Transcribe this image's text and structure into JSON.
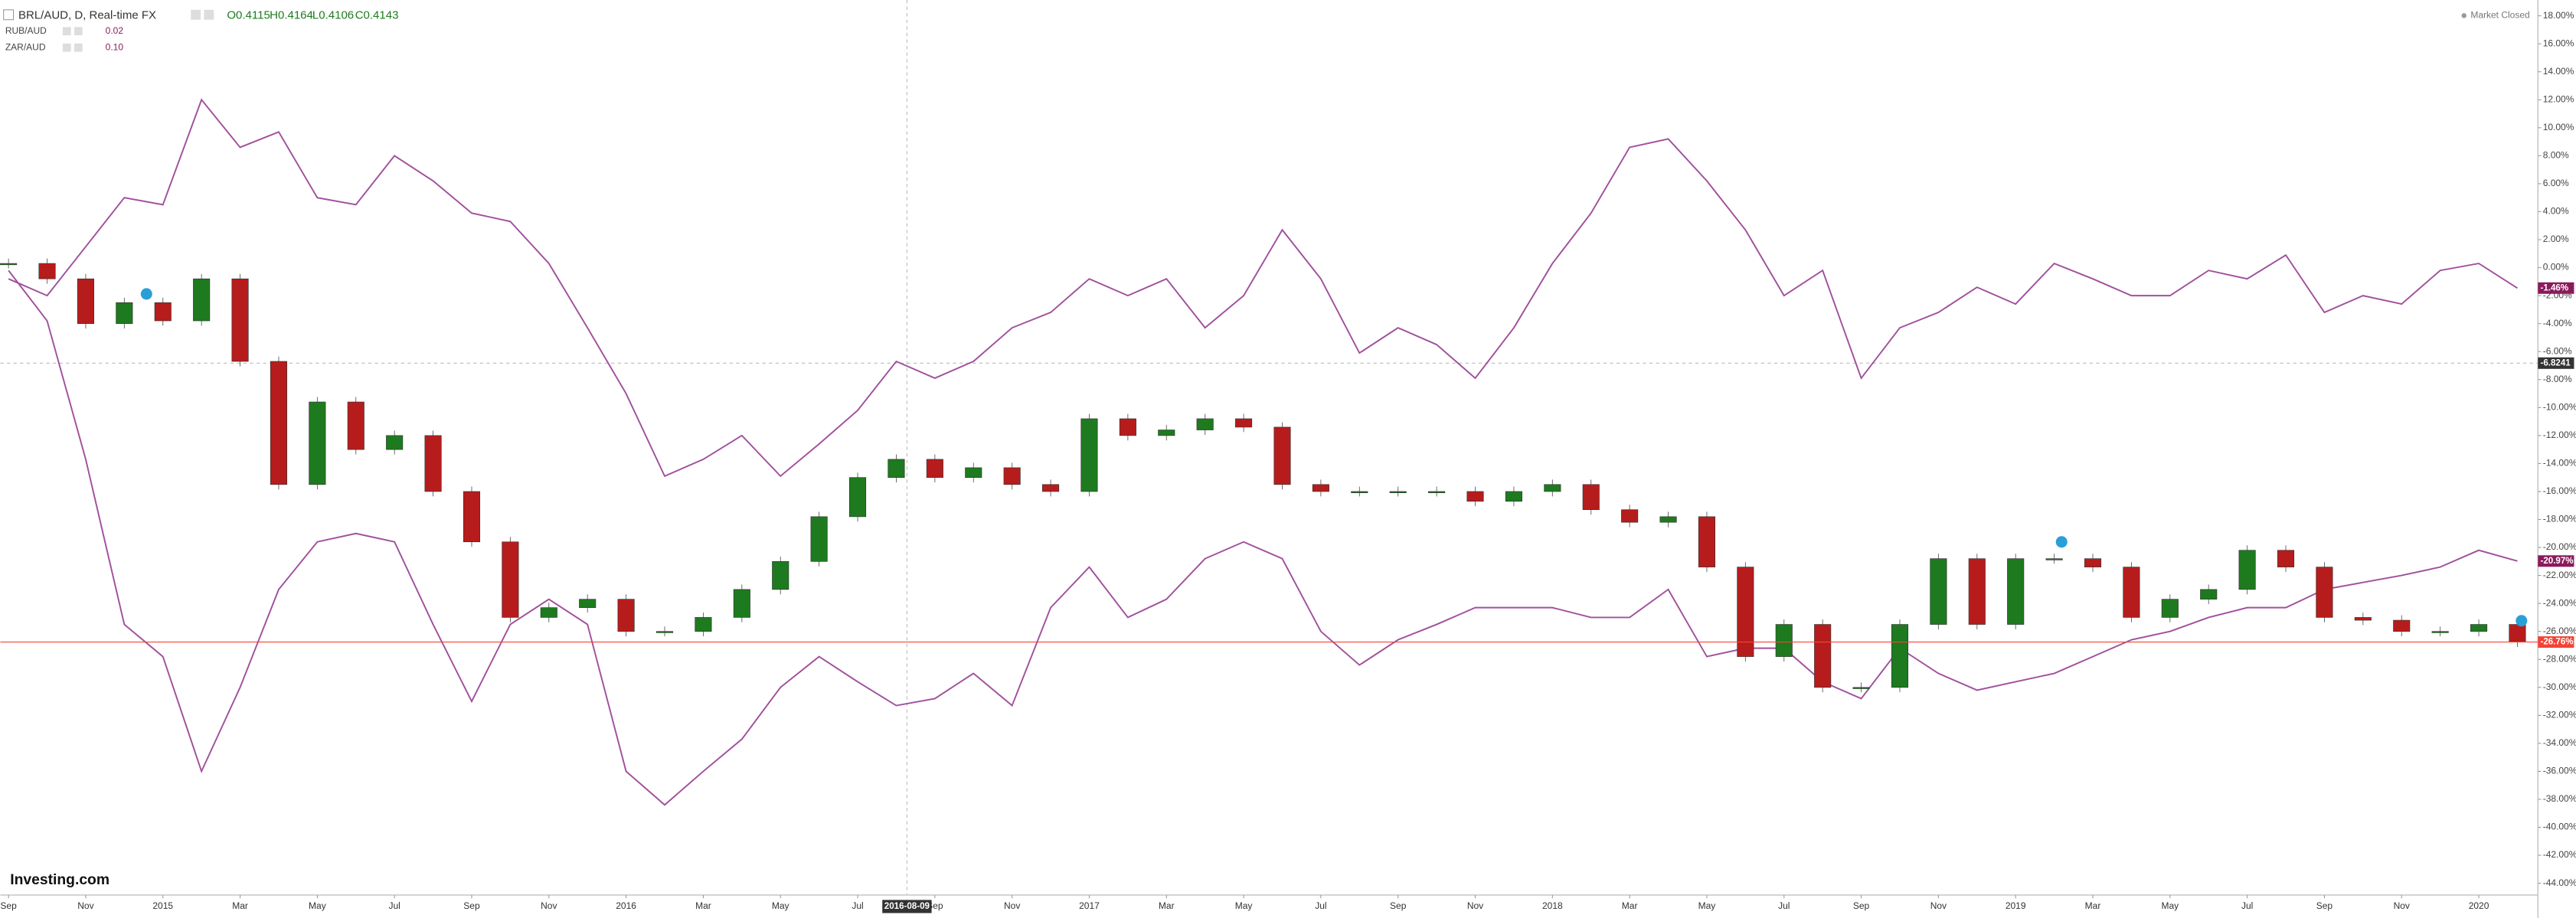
{
  "chart_data": {
    "type": "candlestick",
    "header": {
      "symbol": "BRL/AUD, D, Real-time FX",
      "ohlc": [
        "O0.4115",
        "H0.4164",
        "L0.4106",
        "C0.4143"
      ]
    },
    "status": "Market Closed",
    "brand": "Investing.com",
    "crosshair": {
      "x_label": "2016-08-09",
      "y_label": "-6.8241",
      "y_value": -6.8241
    },
    "categories": [
      "Sep",
      null,
      "Nov",
      null,
      "2015",
      null,
      "Mar",
      null,
      "May",
      null,
      "Jul",
      null,
      "Sep",
      null,
      "Nov",
      null,
      "2016",
      null,
      "Mar",
      null,
      "May",
      null,
      "Jul",
      null,
      "Sep",
      null,
      "Nov",
      null,
      "2017",
      null,
      "Mar",
      null,
      "May",
      null,
      "Jul",
      null,
      "Sep",
      null,
      "Nov",
      null,
      "2018",
      null,
      "Mar",
      null,
      "May",
      null,
      "Jul",
      null,
      "Sep",
      null,
      "Nov",
      null,
      "2019",
      null,
      "Mar",
      null,
      "May",
      null,
      "Jul",
      null,
      "Sep",
      null,
      "Nov",
      null,
      "2020",
      null
    ],
    "series": [
      {
        "name": "BRL/AUD",
        "type": "candlestick",
        "up_color": "#1e7a1e",
        "down_color": "#b71c1c",
        "last_label": "-26.76%",
        "label_color": "#f44336",
        "values": [
          0.3,
          -0.8,
          -4,
          -2.5,
          -3.8,
          -0.8,
          -6.7,
          -15.5,
          -9.6,
          -13,
          -12,
          -16,
          -19.6,
          -25,
          -24.3,
          -23.7,
          -26,
          -26,
          -25,
          -23,
          -21,
          -17.8,
          -15,
          -13.7,
          -15,
          -14.3,
          -15.5,
          -16,
          -10.8,
          -12,
          -11.6,
          -10.8,
          -11.4,
          -15.5,
          -16,
          -16,
          -16,
          -16,
          -16.7,
          -16,
          -15.5,
          -17.3,
          -18.2,
          -17.8,
          -21.4,
          -27.8,
          -25.5,
          -30,
          -30,
          -25.5,
          -20.8,
          -25.5,
          -20.8,
          -20.8,
          -21.4,
          -25,
          -23.7,
          -23,
          -20.2,
          -21.4,
          -25,
          -25.2,
          -26,
          -26,
          -25.5,
          -26.76
        ]
      },
      {
        "name": "RUB/AUD",
        "type": "line",
        "color": "#a0509c",
        "legend_value": "0.02",
        "last_label": "-20.97%",
        "label_color": "#8b1a5c",
        "values": [
          -0.2,
          -3.8,
          -13.7,
          -25.5,
          -27.8,
          -36,
          -30,
          -23,
          -19.6,
          -19,
          -19.6,
          -25.5,
          -31,
          -25.5,
          -23.7,
          -25.5,
          -36,
          -38.4,
          -36,
          -33.7,
          -30,
          -27.8,
          -29.6,
          -31.3,
          -30.8,
          -29,
          -31.3,
          -24.3,
          -21.4,
          -25,
          -23.7,
          -20.8,
          -19.6,
          -20.8,
          -26,
          -28.4,
          -26.6,
          -25.5,
          -24.3,
          -24.3,
          -24.3,
          -25,
          -25,
          -23,
          -27.8,
          -27.2,
          -27.2,
          -29.6,
          -30.8,
          -27.2,
          -29,
          -30.2,
          -29.6,
          -29,
          -27.8,
          -26.6,
          -26,
          -25,
          -24.3,
          -24.3,
          -23,
          -22.5,
          -22,
          -21.4,
          -20.2,
          -20.97
        ]
      },
      {
        "name": "ZAR/AUD",
        "type": "line",
        "color": "#a0509c",
        "legend_value": "0.10",
        "last_label": "-1.46%",
        "label_color": "#8b1a5c",
        "values": [
          -0.8,
          -2,
          1.5,
          5,
          4.5,
          12,
          8.6,
          9.7,
          5,
          4.5,
          8,
          6.2,
          3.9,
          3.3,
          0.3,
          -4.3,
          -9,
          -14.9,
          -13.7,
          -12,
          -14.9,
          -12.6,
          -10.2,
          -6.7,
          -7.9,
          -6.7,
          -4.3,
          -3.2,
          -0.8,
          -2,
          -0.8,
          -4.3,
          -2,
          2.7,
          -0.8,
          -6.1,
          -4.3,
          -5.5,
          -7.9,
          -4.3,
          0.3,
          3.9,
          8.6,
          9.2,
          6.2,
          2.7,
          -2,
          -0.2,
          -7.9,
          -4.3,
          -3.2,
          -1.4,
          -2.6,
          0.3,
          -0.8,
          -2,
          -2,
          -0.2,
          -0.8,
          0.9,
          -3.2,
          -2,
          -2.6,
          -0.2,
          0.3,
          -1.46
        ]
      }
    ],
    "ylim": [
      -44.84,
      19.13
    ],
    "yticks": [
      {
        "value": 18,
        "label": "18.00%"
      },
      {
        "value": 16,
        "label": "16.00%"
      },
      {
        "value": 14,
        "label": "14.00%"
      },
      {
        "value": 12,
        "label": "12.00%"
      },
      {
        "value": 10,
        "label": "10.00%"
      },
      {
        "value": 8,
        "label": "8.00%"
      },
      {
        "value": 6,
        "label": "6.00%"
      },
      {
        "value": 4,
        "label": "4.00%"
      },
      {
        "value": 2,
        "label": "2.00%"
      },
      {
        "value": 0,
        "label": "0.00%"
      },
      {
        "value": -2,
        "label": "-2.00%"
      },
      {
        "value": -4,
        "label": "-4.00%"
      },
      {
        "value": -6,
        "label": "-6.00%"
      },
      {
        "value": -8,
        "label": "-8.00%"
      },
      {
        "value": -10,
        "label": "-10.00%"
      },
      {
        "value": -12,
        "label": "-12.00%"
      },
      {
        "value": -14,
        "label": "-14.00%"
      },
      {
        "value": -16,
        "label": "-16.00%"
      },
      {
        "value": -18,
        "label": "-18.00%"
      },
      {
        "value": -20,
        "label": "-20.00%"
      },
      {
        "value": -22,
        "label": "-22.00%"
      },
      {
        "value": -24,
        "label": "-24.00%"
      },
      {
        "value": -26,
        "label": "-26.00%"
      },
      {
        "value": -28,
        "label": "-28.00%"
      },
      {
        "value": -30,
        "label": "-30.00%"
      },
      {
        "value": -32,
        "label": "-32.00%"
      },
      {
        "value": -34,
        "label": "-34.00%"
      },
      {
        "value": -36,
        "label": "-36.00%"
      },
      {
        "value": -38,
        "label": "-38.00%"
      },
      {
        "value": -40,
        "label": "-40.00%"
      },
      {
        "value": -42,
        "label": "-42.00%"
      },
      {
        "value": -44,
        "label": "-44.00%"
      }
    ]
  }
}
